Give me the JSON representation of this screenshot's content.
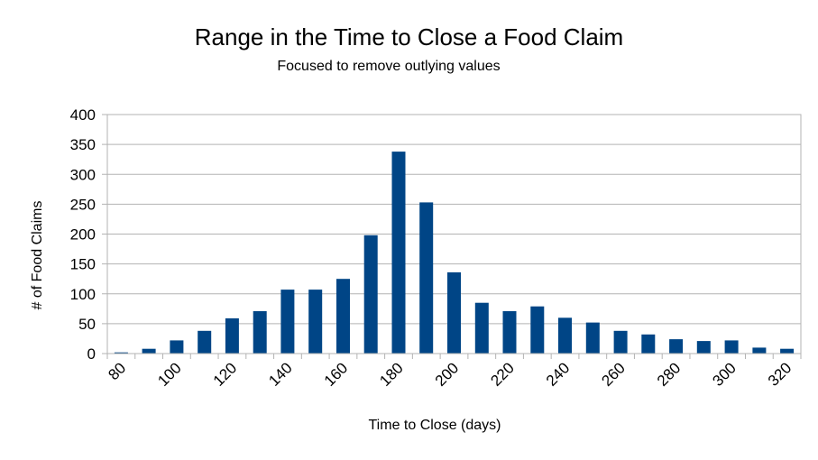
{
  "chart_data": {
    "type": "bar",
    "title": "Range in the Time to Close a Food Claim",
    "subtitle": "Focused to remove outlying values",
    "xlabel": "Time to Close (days)",
    "ylabel": "# of Food Claims",
    "ylim": [
      0,
      400
    ],
    "yticks": [
      "0",
      "50",
      "100",
      "150",
      "200",
      "250",
      "300",
      "350",
      "400"
    ],
    "categories": [
      "80",
      "90",
      "100",
      "110",
      "120",
      "130",
      "140",
      "150",
      "160",
      "170",
      "180",
      "190",
      "200",
      "210",
      "220",
      "230",
      "240",
      "250",
      "260",
      "270",
      "280",
      "290",
      "300",
      "310",
      "320"
    ],
    "tick_labels": [
      "80",
      "",
      "100",
      "",
      "120",
      "",
      "140",
      "",
      "160",
      "",
      "180",
      "",
      "200",
      "",
      "220",
      "",
      "240",
      "",
      "260",
      "",
      "280",
      "",
      "300",
      "",
      "320"
    ],
    "values": [
      2,
      8,
      22,
      38,
      59,
      71,
      107,
      107,
      125,
      198,
      338,
      253,
      136,
      85,
      71,
      79,
      60,
      52,
      38,
      32,
      24,
      21,
      22,
      10,
      8
    ],
    "grid": true,
    "bar_color": "#004586",
    "grid_color": "#b3b3b3"
  }
}
